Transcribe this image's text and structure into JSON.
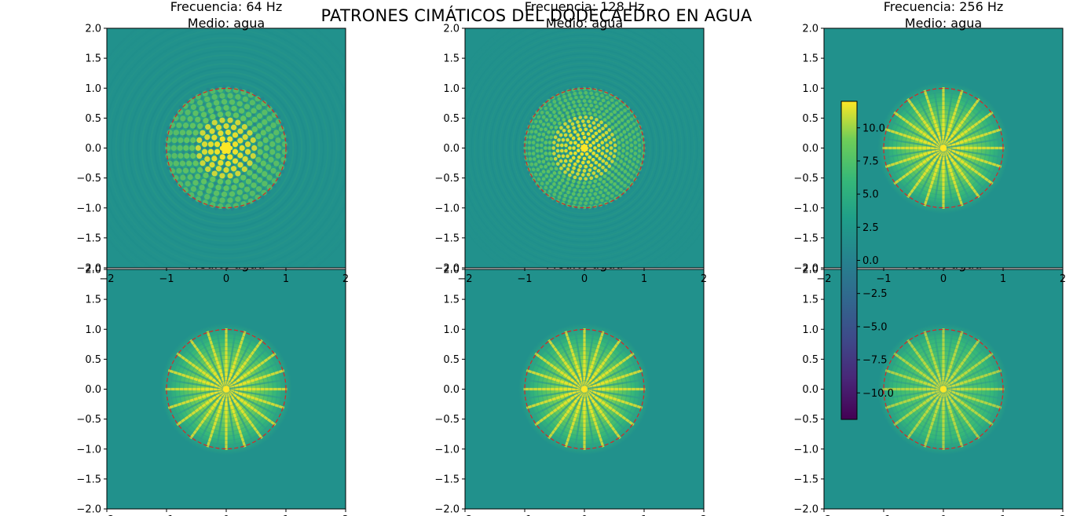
{
  "figure": {
    "suptitle": "PATRONES CIMÁTICOS DEL DODECAEDRO EN AGUA"
  },
  "colorbar": {
    "ticks": [
      10.0,
      7.5,
      5.0,
      2.5,
      0.0,
      -2.5,
      -5.0,
      -7.5,
      -10.0
    ],
    "tick_labels": [
      "10.0",
      "7.5",
      "5.0",
      "2.5",
      "0.0",
      "−2.5",
      "−5.0",
      "−7.5",
      "−10.0"
    ],
    "range": [
      -12,
      12
    ],
    "colormap": "viridis"
  },
  "chart_data": [
    {
      "type": "heatmap",
      "title_line1": "Frecuencia: 64 Hz",
      "title_line2": "Medio: agua",
      "frequency_hz": 64,
      "medium": "agua",
      "xlim": [
        -2,
        2
      ],
      "ylim": [
        -2,
        2
      ],
      "ytick_labels": [
        "2.0",
        "1.5",
        "1.0",
        "0.5",
        "0.0",
        "−0.5",
        "−1.0",
        "−1.5",
        "−2.0"
      ],
      "xtick_labels": [
        "−2",
        "−1",
        "0",
        "1",
        "2"
      ],
      "boundary_circle_radius": 1.0,
      "boundary_color": "#d62728",
      "pattern": "ring_lattice"
    },
    {
      "type": "heatmap",
      "title_line1": "Frecuencia: 128 Hz",
      "title_line2": "Medio: agua",
      "frequency_hz": 128,
      "medium": "agua",
      "xlim": [
        -2,
        2
      ],
      "ylim": [
        -2,
        2
      ],
      "ytick_labels": [
        "2.0",
        "1.5",
        "1.0",
        "0.5",
        "0.0",
        "−0.5",
        "−1.0",
        "−1.5",
        "−2.0"
      ],
      "xtick_labels": [
        "−2",
        "−1",
        "0",
        "1",
        "2"
      ],
      "boundary_circle_radius": 1.0,
      "boundary_color": "#d62728",
      "pattern": "fine_lattice"
    },
    {
      "type": "heatmap",
      "title_line1": "Frecuencia: 256 Hz",
      "title_line2": "Medio: agua",
      "frequency_hz": 256,
      "medium": "agua",
      "xlim": [
        -2,
        2
      ],
      "ylim": [
        -2,
        2
      ],
      "ytick_labels": [
        "2.0",
        "1.5",
        "1.0",
        "0.5",
        "0.0",
        "−0.5",
        "−1.0",
        "−1.5",
        "−2.0"
      ],
      "xtick_labels": [
        "−2",
        "−1",
        "0",
        "1",
        "2"
      ],
      "boundary_circle_radius": 1.0,
      "boundary_color": "#d62728",
      "pattern": "radial"
    },
    {
      "type": "heatmap",
      "title_line1": "Frecuencia: 432 Hz",
      "title_line2": "Medio: agua",
      "frequency_hz": 432,
      "medium": "agua",
      "xlim": [
        -2,
        2
      ],
      "ylim": [
        -2,
        2
      ],
      "ytick_labels": [
        "2.0",
        "1.5",
        "1.0",
        "0.5",
        "0.0",
        "−0.5",
        "−1.0",
        "−1.5",
        "−2.0"
      ],
      "xtick_labels": [
        "−2",
        "−1",
        "0",
        "1",
        "2"
      ],
      "boundary_circle_radius": 1.0,
      "boundary_color": "#d62728",
      "pattern": "radial"
    },
    {
      "type": "heatmap",
      "title_line1": "Frecuencia: 528 Hz",
      "title_line2": "Medio: agua",
      "frequency_hz": 528,
      "medium": "agua",
      "xlim": [
        -2,
        2
      ],
      "ylim": [
        -2,
        2
      ],
      "ytick_labels": [
        "2.0",
        "1.5",
        "1.0",
        "0.5",
        "0.0",
        "−0.5",
        "−1.0",
        "−1.5",
        "−2.0"
      ],
      "xtick_labels": [
        "−2",
        "−1",
        "0",
        "1",
        "2"
      ],
      "boundary_circle_radius": 1.0,
      "boundary_color": "#d62728",
      "pattern": "radial"
    },
    {
      "type": "heatmap",
      "title_line1": "Frecuencia: 864 Hz",
      "title_line2": "Medio: agua",
      "frequency_hz": 864,
      "medium": "agua",
      "xlim": [
        -2,
        2
      ],
      "ylim": [
        -2,
        2
      ],
      "ytick_labels": [
        "2.0",
        "1.5",
        "1.0",
        "0.5",
        "0.0",
        "−0.5",
        "−1.0",
        "−1.5",
        "−2.0"
      ],
      "xtick_labels": [
        "−2",
        "−1",
        "0",
        "1",
        "2"
      ],
      "boundary_circle_radius": 1.0,
      "boundary_color": "#d62728",
      "pattern": "radial_faint"
    }
  ]
}
